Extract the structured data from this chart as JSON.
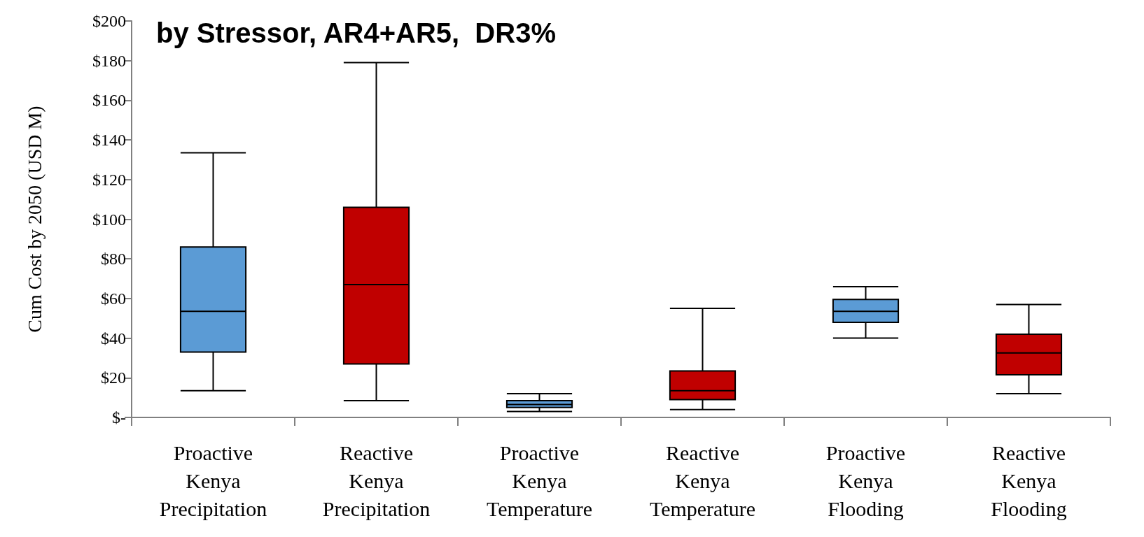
{
  "chart_data": {
    "type": "box",
    "title": "by Stressor, AR4+AR5,  DR3%",
    "ylabel": "Cum Cost by 2050 (USD M)",
    "categories": [
      "Proactive\nKenya\nPrecipitation",
      "Reactive\nKenya\nPrecipitation",
      "Proactive\nKenya\nTemperature",
      "Reactive\nKenya\nTemperature",
      "Proactive\nKenya\nFlooding",
      "Reactive\nKenya\nFlooding"
    ],
    "boxes": [
      {
        "low": 13.5,
        "q1": 33,
        "median": 53.5,
        "q3": 86,
        "high": 133.5
      },
      {
        "low": 8.5,
        "q1": 27,
        "median": 67,
        "q3": 106,
        "high": 179
      },
      {
        "low": 3,
        "q1": 5,
        "median": 6.5,
        "q3": 8.5,
        "high": 12
      },
      {
        "low": 4,
        "q1": 9,
        "median": 13.5,
        "q3": 23.5,
        "high": 55
      },
      {
        "low": 40,
        "q1": 48,
        "median": 53.5,
        "q3": 59.5,
        "high": 66
      },
      {
        "low": 12,
        "q1": 21.5,
        "median": 32.5,
        "q3": 42,
        "high": 57
      }
    ],
    "colors": [
      "#5b9bd5",
      "#c00000",
      "#5b9bd5",
      "#c00000",
      "#5b9bd5",
      "#c00000"
    ],
    "ylim": [
      0,
      200
    ],
    "yticks": [
      {
        "value": 0,
        "label": "$-"
      },
      {
        "value": 20,
        "label": "$20"
      },
      {
        "value": 40,
        "label": "$40"
      },
      {
        "value": 60,
        "label": "$60"
      },
      {
        "value": 80,
        "label": "$80"
      },
      {
        "value": 100,
        "label": "$100"
      },
      {
        "value": 120,
        "label": "$120"
      },
      {
        "value": 140,
        "label": "$140"
      },
      {
        "value": 160,
        "label": "$160"
      },
      {
        "value": 180,
        "label": "$180"
      },
      {
        "value": 200,
        "label": "$200"
      }
    ],
    "grid": false
  }
}
